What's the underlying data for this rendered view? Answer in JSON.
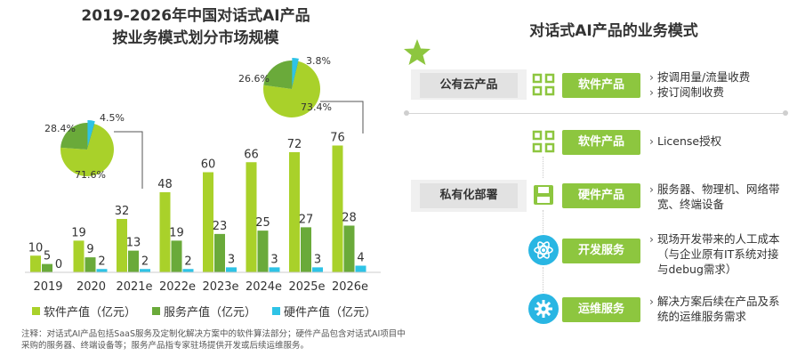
{
  "left": {
    "title_line1": "2019-2026年中国对话式AI产品",
    "title_line2": "按业务模式划分市场规模",
    "legend": [
      "软件产值（亿元）",
      "服务产值（亿元）",
      "硬件产值（亿元）"
    ],
    "note": "注释：对话式AI产品包括SaaS服务及定制化解决方案中的软件算法部分；硬件产品包含对话式AI项目中采购的服务器、终端设备等；服务产品指专家驻场提供开发或后续运维服务。"
  },
  "chart_data": [
    {
      "type": "bar",
      "title": "2019-2026年中国对话式AI产品按业务模式划分市场规模",
      "categories": [
        "2019",
        "2020",
        "2021e",
        "2022e",
        "2023e",
        "2024e",
        "2025e",
        "2026e"
      ],
      "series": [
        {
          "name": "软件产值（亿元）",
          "values": [
            10,
            19,
            32,
            48,
            60,
            66,
            72,
            76
          ],
          "color": "#a9d12a"
        },
        {
          "name": "服务产值（亿元）",
          "values": [
            5,
            9,
            13,
            19,
            23,
            25,
            27,
            28
          ],
          "color": "#6aaa3a"
        },
        {
          "name": "硬件产值（亿元）",
          "values": [
            0,
            2,
            2,
            2,
            3,
            3,
            3,
            4
          ],
          "color": "#2ec3e6"
        }
      ],
      "ylim": [
        0,
        80
      ],
      "grid": false,
      "legend": "bottom"
    },
    {
      "type": "pie",
      "labels": [
        "软件产值",
        "服务产值",
        "硬件产值"
      ],
      "values": [
        71.6,
        28.4,
        4.5
      ],
      "value_labels": [
        "71.6%",
        "28.4%",
        "4.5%"
      ]
    },
    {
      "type": "pie",
      "labels": [
        "软件产值",
        "服务产值",
        "硬件产值"
      ],
      "values": [
        73.4,
        26.6,
        3.8
      ],
      "value_labels": [
        "73.4%",
        "26.6%",
        "3.8%"
      ]
    }
  ],
  "right": {
    "title": "对话式AI产品的业务模式",
    "public": {
      "category": "公有云产品",
      "product": "软件产品",
      "bullets": [
        "按调用量/流量收费",
        "按订阅制收费"
      ]
    },
    "private": {
      "category": "私有化部署",
      "rows": [
        {
          "product": "软件产品",
          "icon": "grid-icon",
          "bullets": [
            "License授权"
          ]
        },
        {
          "product": "硬件产品",
          "icon": "floppy-disk-icon",
          "bullets": [
            "服务器、物理机、网络带宽、终端设备"
          ]
        },
        {
          "product": "开发服务",
          "icon": "atom-icon",
          "bullets": [
            "现场开发带来的人工成本（与企业原有IT系统对接与debug需求）"
          ]
        },
        {
          "product": "运维服务",
          "icon": "gear-icon",
          "bullets": [
            "解决方案后续在产品及系统的运维服务需求"
          ]
        }
      ]
    },
    "colors": {
      "green": "#8dc63f",
      "star": "#8dc63f",
      "gray": "#e6e6e6"
    }
  }
}
